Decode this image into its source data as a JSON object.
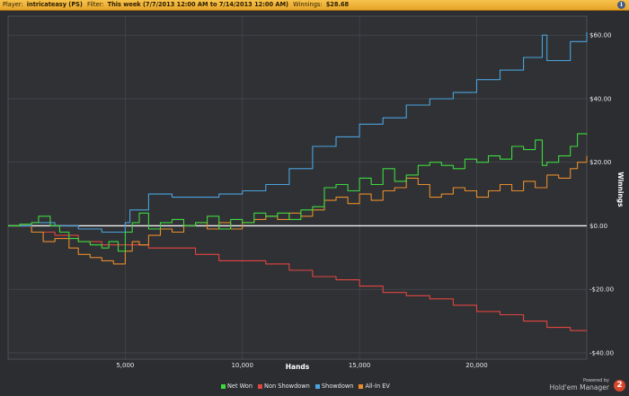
{
  "header": {
    "player_label": "Player:",
    "player_value": "intricateasy (PS)",
    "filter_label": "Filter:",
    "filter_value": "This week (7/7/2013 12:00 AM to 7/14/2013 12:00 AM)",
    "winnings_label": "Winnings:",
    "winnings_value": "$28.68",
    "info_icon": "info-icon"
  },
  "branding": {
    "powered_by": "Powered by",
    "product": "Hold'em Manager",
    "logo_text": "2"
  },
  "chart_data": {
    "type": "line",
    "xlabel": "Hands",
    "ylabel": "Winnings",
    "xlim": [
      0,
      24700
    ],
    "ylim": [
      -42,
      66
    ],
    "x_ticks": [
      5000,
      10000,
      15000,
      20000
    ],
    "x_tick_labels": [
      "5,000",
      "10,000",
      "15,000",
      "20,000"
    ],
    "y_ticks": [
      60,
      40,
      20,
      0,
      -20,
      -40
    ],
    "y_tick_labels": [
      "$60.00",
      "$40.00",
      "$20.00",
      "$0.00",
      "-$20.00",
      "-$40.00"
    ],
    "grid": true,
    "legend_position": "bottom-center",
    "series": [
      {
        "name": "Net Won",
        "color": "#3ed93e",
        "x": [
          0,
          500,
          1000,
          1300,
          1800,
          2200,
          2600,
          3000,
          3500,
          4000,
          4300,
          4700,
          5000,
          5300,
          5600,
          6000,
          6500,
          7000,
          7500,
          8000,
          8500,
          9000,
          9500,
          10000,
          10500,
          11000,
          11500,
          12000,
          12500,
          13000,
          13500,
          14000,
          14500,
          15000,
          15500,
          16000,
          16500,
          17000,
          17500,
          18000,
          18500,
          19000,
          19500,
          20000,
          20500,
          21000,
          21500,
          22000,
          22500,
          22800,
          23000,
          23500,
          24000,
          24300,
          24700
        ],
        "y": [
          0,
          0.5,
          1,
          3,
          0,
          -2,
          -4,
          -5,
          -6,
          -7,
          -5,
          -8,
          -2,
          1,
          4,
          -1,
          1,
          2,
          0,
          1,
          3,
          -1,
          2,
          1,
          4,
          3,
          4,
          2,
          5,
          6,
          12,
          13,
          11,
          15,
          13,
          18,
          14,
          16,
          19,
          20,
          19,
          18,
          21,
          20,
          22,
          21,
          25,
          24,
          27,
          19,
          20,
          22,
          25,
          29,
          28.7
        ]
      },
      {
        "name": "Non Showdown",
        "color": "#e2453f",
        "x": [
          0,
          1000,
          2000,
          3000,
          4000,
          5000,
          6000,
          7000,
          8000,
          9000,
          10000,
          11000,
          12000,
          13000,
          14000,
          15000,
          16000,
          17000,
          18000,
          19000,
          20000,
          21000,
          22000,
          23000,
          24000,
          24700
        ],
        "y": [
          0,
          -2,
          -3,
          -5,
          -6,
          -6,
          -7,
          -7,
          -9,
          -11,
          -11,
          -12,
          -14,
          -16,
          -17,
          -19,
          -21,
          -22,
          -23,
          -25,
          -27,
          -28,
          -30,
          -32,
          -33,
          -33
        ]
      },
      {
        "name": "Showdown",
        "color": "#4aa3dd",
        "x": [
          0,
          1000,
          2000,
          3000,
          4000,
          5000,
          5200,
          6000,
          7000,
          8000,
          9000,
          10000,
          11000,
          12000,
          13000,
          14000,
          15000,
          16000,
          17000,
          18000,
          19000,
          20000,
          21000,
          22000,
          22800,
          23000,
          24000,
          24700
        ],
        "y": [
          0,
          1,
          0,
          -1,
          -2,
          1,
          5,
          10,
          9,
          9,
          10,
          11,
          13,
          18,
          25,
          28,
          32,
          34,
          38,
          40,
          42,
          46,
          49,
          53,
          60,
          52,
          58,
          61
        ]
      },
      {
        "name": "All-In EV",
        "color": "#e88c2b",
        "x": [
          0,
          1000,
          1500,
          2000,
          2600,
          3000,
          3500,
          4000,
          4500,
          5000,
          5300,
          5600,
          6000,
          6500,
          7000,
          7500,
          8000,
          8500,
          9000,
          9500,
          10000,
          10500,
          11000,
          11500,
          12000,
          12500,
          13000,
          13500,
          14000,
          14500,
          15000,
          15500,
          16000,
          16500,
          17000,
          17500,
          18000,
          18500,
          19000,
          19500,
          20000,
          20500,
          21000,
          21500,
          22000,
          22500,
          23000,
          23500,
          24000,
          24300,
          24700
        ],
        "y": [
          0,
          -2,
          -5,
          -4,
          -7,
          -9,
          -10,
          -11,
          -12,
          -8,
          -5,
          -6,
          -3,
          -1,
          -2,
          0,
          1,
          -1,
          1,
          -1,
          1,
          2,
          3,
          2,
          4,
          3,
          5,
          8,
          9,
          7,
          10,
          8,
          11,
          12,
          15,
          13,
          9,
          10,
          12,
          11,
          9,
          11,
          13,
          11,
          14,
          12,
          16,
          15,
          18,
          20,
          22
        ]
      }
    ]
  }
}
